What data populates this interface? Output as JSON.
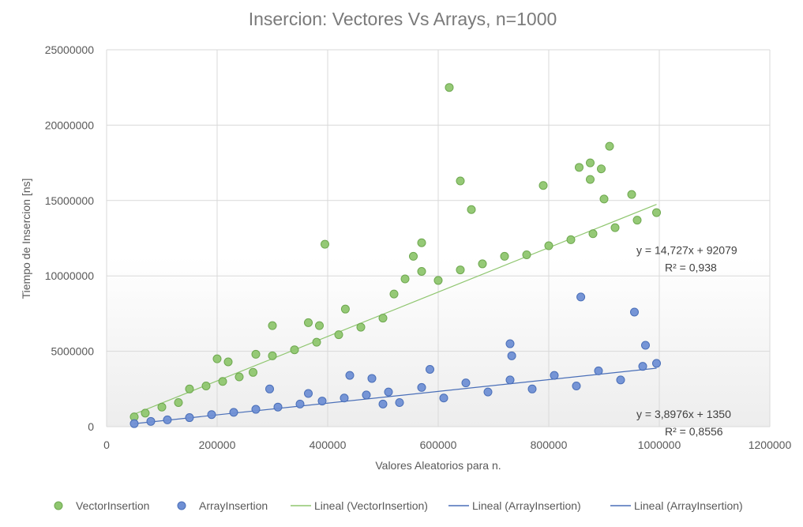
{
  "chart_data": {
    "type": "scatter",
    "title": "Insercion: Vectores Vs Arrays, n=1000",
    "xlabel": "Valores Aleatorios para n.",
    "ylabel": "Tiempo de Insercion [ns]",
    "xlim": [
      0,
      1200000
    ],
    "ylim": [
      0,
      25000000
    ],
    "x_ticks": [
      0,
      200000,
      400000,
      600000,
      800000,
      1000000,
      1200000
    ],
    "y_ticks": [
      0,
      5000000,
      10000000,
      15000000,
      20000000,
      25000000
    ],
    "x_tick_labels": [
      "0",
      "200000",
      "400000",
      "600000",
      "800000",
      "1000000",
      "1200000"
    ],
    "y_tick_labels": [
      "0",
      "5000000",
      "10000000",
      "15000000",
      "20000000",
      "25000000"
    ],
    "grid": true,
    "legend_position": "bottom",
    "series": [
      {
        "name": "VectorInsertion",
        "color": "#8fc66f",
        "stroke": "#6ea84f",
        "points": [
          [
            50000,
            650000
          ],
          [
            70000,
            900000
          ],
          [
            100000,
            1300000
          ],
          [
            130000,
            1600000
          ],
          [
            150000,
            2500000
          ],
          [
            180000,
            2700000
          ],
          [
            210000,
            3000000
          ],
          [
            240000,
            3300000
          ],
          [
            265000,
            3600000
          ],
          [
            270000,
            4800000
          ],
          [
            300000,
            4700000
          ],
          [
            340000,
            5100000
          ],
          [
            380000,
            5600000
          ],
          [
            420000,
            6100000
          ],
          [
            460000,
            6600000
          ],
          [
            500000,
            7200000
          ],
          [
            520000,
            8800000
          ],
          [
            540000,
            9800000
          ],
          [
            570000,
            10300000
          ],
          [
            600000,
            9700000
          ],
          [
            640000,
            10400000
          ],
          [
            680000,
            10800000
          ],
          [
            720000,
            11300000
          ],
          [
            760000,
            11400000
          ],
          [
            800000,
            12000000
          ],
          [
            840000,
            12400000
          ],
          [
            880000,
            12800000
          ],
          [
            920000,
            13200000
          ],
          [
            960000,
            13700000
          ],
          [
            995000,
            14200000
          ],
          [
            200000,
            4500000
          ],
          [
            220000,
            4300000
          ],
          [
            300000,
            6700000
          ],
          [
            365000,
            6900000
          ],
          [
            385000,
            6700000
          ],
          [
            395000,
            12100000
          ],
          [
            432000,
            7800000
          ],
          [
            570000,
            12200000
          ],
          [
            555000,
            11300000
          ],
          [
            620000,
            22500000
          ],
          [
            640000,
            16300000
          ],
          [
            660000,
            14400000
          ],
          [
            790000,
            16000000
          ],
          [
            855000,
            17200000
          ],
          [
            875000,
            17500000
          ],
          [
            895000,
            17100000
          ],
          [
            875000,
            16400000
          ],
          [
            910000,
            18600000
          ],
          [
            900000,
            15100000
          ],
          [
            950000,
            15400000
          ]
        ]
      },
      {
        "name": "ArrayInsertion",
        "color": "#6f8fd4",
        "stroke": "#4a6fb8",
        "points": [
          [
            50000,
            200000
          ],
          [
            80000,
            350000
          ],
          [
            110000,
            450000
          ],
          [
            150000,
            600000
          ],
          [
            190000,
            800000
          ],
          [
            230000,
            950000
          ],
          [
            270000,
            1150000
          ],
          [
            310000,
            1300000
          ],
          [
            350000,
            1500000
          ],
          [
            390000,
            1700000
          ],
          [
            430000,
            1900000
          ],
          [
            470000,
            2100000
          ],
          [
            510000,
            2300000
          ],
          [
            530000,
            1600000
          ],
          [
            570000,
            2600000
          ],
          [
            610000,
            1900000
          ],
          [
            650000,
            2900000
          ],
          [
            690000,
            2300000
          ],
          [
            730000,
            3100000
          ],
          [
            770000,
            2500000
          ],
          [
            810000,
            3400000
          ],
          [
            850000,
            2700000
          ],
          [
            890000,
            3700000
          ],
          [
            930000,
            3100000
          ],
          [
            970000,
            4000000
          ],
          [
            995000,
            4200000
          ],
          [
            295000,
            2500000
          ],
          [
            365000,
            2200000
          ],
          [
            440000,
            3400000
          ],
          [
            480000,
            3200000
          ],
          [
            500000,
            1500000
          ],
          [
            585000,
            3800000
          ],
          [
            730000,
            5500000
          ],
          [
            733000,
            4700000
          ],
          [
            858000,
            8600000
          ],
          [
            955000,
            7600000
          ],
          [
            975000,
            5400000
          ]
        ]
      }
    ],
    "trendlines": [
      {
        "series": "VectorInsertion",
        "label": "Lineal (VectorInsertion)",
        "slope": 14.727,
        "intercept": 92079,
        "equation": "y = 14,727x + 92079",
        "r2": "R² = 0,938",
        "color": "#8fc66f"
      },
      {
        "series": "ArrayInsertion",
        "label": "Lineal (ArrayInsertion)",
        "slope": 3.8976,
        "intercept": 1350,
        "equation": "y = 3,8976x + 1350",
        "r2": "R² = 0,8556",
        "color": "#4a6fb8"
      }
    ],
    "legend": [
      {
        "label": "VectorInsertion",
        "kind": "marker",
        "color": "#8fc66f"
      },
      {
        "label": "ArrayInsertion",
        "kind": "marker",
        "color": "#6f8fd4"
      },
      {
        "label": "Lineal (VectorInsertion)",
        "kind": "line",
        "color": "#8fc66f"
      },
      {
        "label": "Lineal (ArrayInsertion)",
        "kind": "line",
        "color": "#4a6fb8"
      },
      {
        "label": "Lineal (ArrayInsertion)",
        "kind": "line",
        "color": "#4a6fb8"
      }
    ]
  }
}
